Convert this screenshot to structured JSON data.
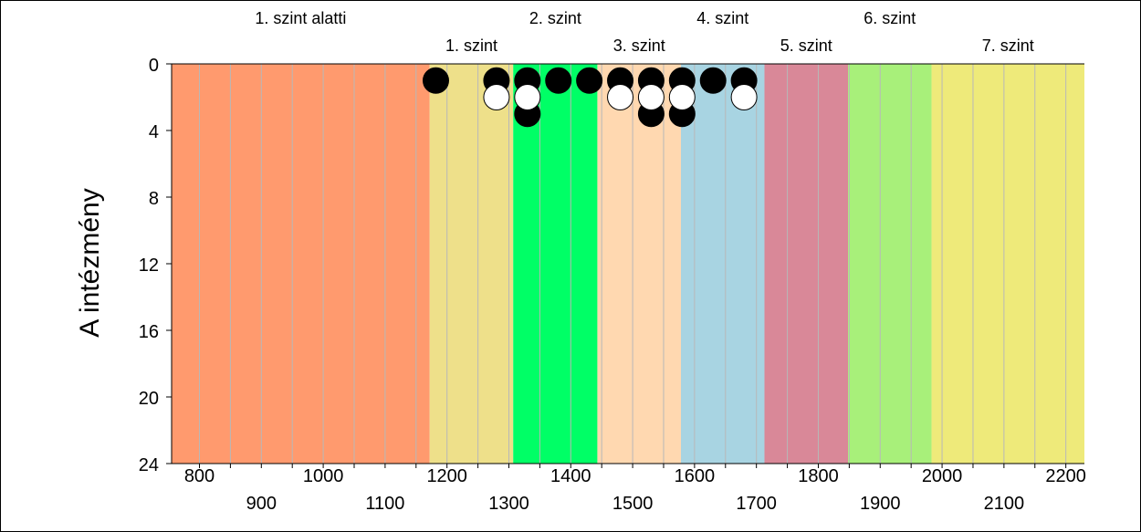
{
  "chart_data": {
    "type": "scatter",
    "title": "",
    "xlabel": "",
    "ylabel": "A intézmény",
    "xlim": [
      755,
      2230
    ],
    "ylim": [
      0,
      24
    ],
    "y_ticks": [
      0,
      4,
      8,
      12,
      16,
      20,
      24
    ],
    "x_ticks_upper_row": [
      800,
      1000,
      1200,
      1400,
      1600,
      1800,
      2000,
      2200
    ],
    "x_ticks_lower_row": [
      900,
      1100,
      1300,
      1500,
      1700,
      1900,
      2100
    ],
    "bands": [
      {
        "label": "1. szint alatti",
        "from": 755,
        "to": 1172,
        "color": "#ff9a6e",
        "label_row": "upper"
      },
      {
        "label": "1. szint",
        "from": 1172,
        "to": 1307,
        "color": "#eee08a",
        "label_row": "lower"
      },
      {
        "label": "2. szint",
        "from": 1307,
        "to": 1443,
        "color": "#00ff66",
        "label_row": "upper"
      },
      {
        "label": "3. szint",
        "from": 1443,
        "to": 1578,
        "color": "#ffd8b0",
        "label_row": "lower"
      },
      {
        "label": "4. szint",
        "from": 1578,
        "to": 1713,
        "color": "#a8d4e2",
        "label_row": "upper"
      },
      {
        "label": "5. szint",
        "from": 1713,
        "to": 1848,
        "color": "#d98898",
        "label_row": "lower"
      },
      {
        "label": "6. szint",
        "from": 1848,
        "to": 1983,
        "color": "#a8f07a",
        "label_row": "upper"
      },
      {
        "label": "7. szint",
        "from": 1983,
        "to": 2230,
        "color": "#eeea7a",
        "label_row": "lower"
      }
    ],
    "series": [
      {
        "name": "fekete",
        "color": "#000000",
        "points": [
          {
            "x": 1182,
            "y": 1
          },
          {
            "x": 1280,
            "y": 1
          },
          {
            "x": 1330,
            "y": 1
          },
          {
            "x": 1330,
            "y": 3
          },
          {
            "x": 1380,
            "y": 1
          },
          {
            "x": 1430,
            "y": 1
          },
          {
            "x": 1480,
            "y": 1
          },
          {
            "x": 1530,
            "y": 1
          },
          {
            "x": 1530,
            "y": 3
          },
          {
            "x": 1580,
            "y": 1
          },
          {
            "x": 1580,
            "y": 3
          },
          {
            "x": 1630,
            "y": 1
          },
          {
            "x": 1680,
            "y": 1
          }
        ]
      },
      {
        "name": "fehér",
        "color": "#ffffff",
        "points": [
          {
            "x": 1280,
            "y": 2
          },
          {
            "x": 1330,
            "y": 2
          },
          {
            "x": 1480,
            "y": 2
          },
          {
            "x": 1530,
            "y": 2
          },
          {
            "x": 1580,
            "y": 2
          },
          {
            "x": 1680,
            "y": 2
          }
        ]
      }
    ]
  }
}
